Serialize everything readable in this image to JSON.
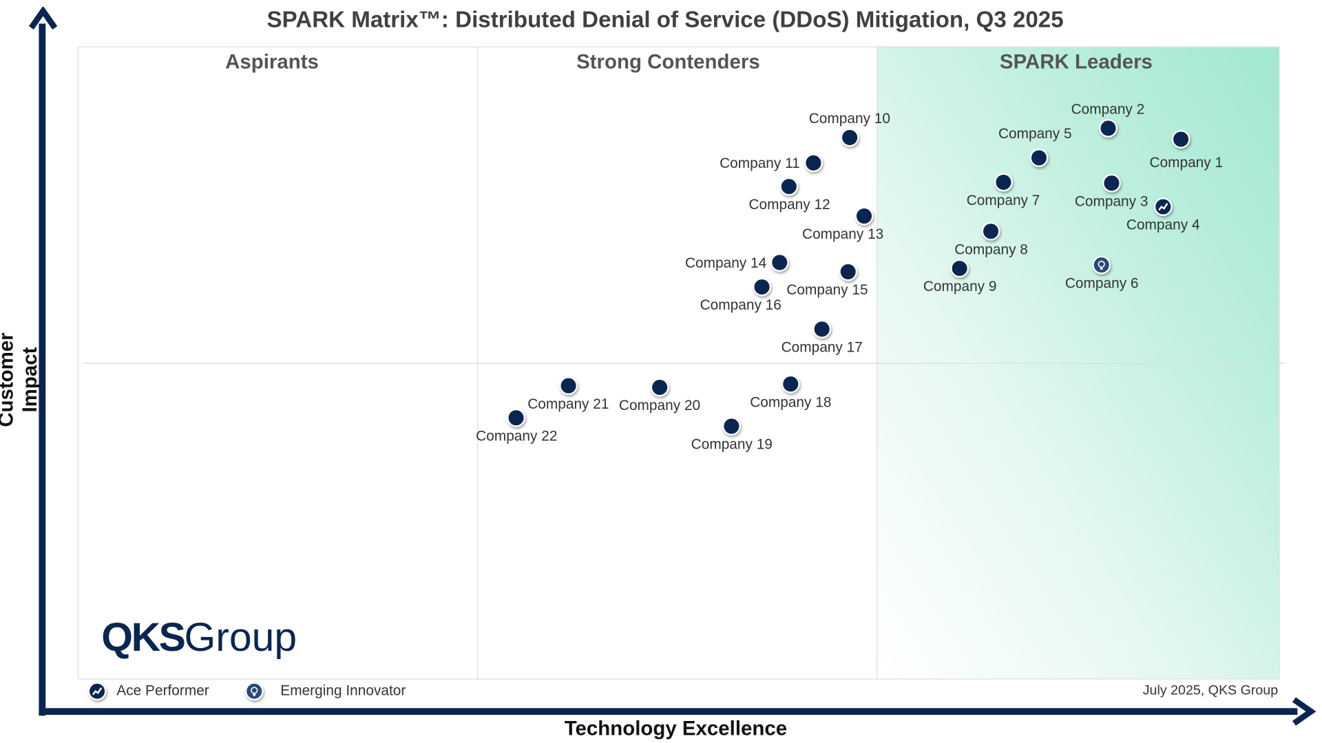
{
  "chart_data": {
    "type": "scatter",
    "title": "SPARK Matrix™: Distributed Denial of Service (DDoS) Mitigation, Q3 2025",
    "xlabel": "Technology Excellence",
    "ylabel": "Customer Impact",
    "xlim": [
      0,
      100
    ],
    "ylim": [
      0,
      100
    ],
    "grid": false,
    "quadrants": [
      "Aspirants",
      "Strong Contenders",
      "SPARK Leaders"
    ],
    "legend": {
      "placement": "bottom-left",
      "items": [
        {
          "label": "Ace Performer",
          "icon": "trend-up-icon"
        },
        {
          "label": "Emerging Innovator",
          "icon": "lightbulb-icon"
        }
      ]
    },
    "points": [
      {
        "name": "Company 1",
        "x": 91.8,
        "y": 85.3,
        "label": "below",
        "badge": ""
      },
      {
        "name": "Company 2",
        "x": 85.7,
        "y": 87.1,
        "label": "above",
        "badge": ""
      },
      {
        "name": "Company 3",
        "x": 86.0,
        "y": 78.4,
        "label": "below",
        "badge": ""
      },
      {
        "name": "Company 4",
        "x": 90.3,
        "y": 74.7,
        "label": "below",
        "badge": "Ace Performer"
      },
      {
        "name": "Company 5",
        "x": 80.0,
        "y": 82.4,
        "label": "above-left",
        "badge": ""
      },
      {
        "name": "Company 6",
        "x": 85.2,
        "y": 65.5,
        "label": "below",
        "badge": "Emerging Innovator"
      },
      {
        "name": "Company 7",
        "x": 77.0,
        "y": 78.5,
        "label": "below",
        "badge": ""
      },
      {
        "name": "Company 8",
        "x": 76.0,
        "y": 70.8,
        "label": "below",
        "badge": ""
      },
      {
        "name": "Company 9",
        "x": 73.4,
        "y": 64.9,
        "label": "below",
        "badge": ""
      },
      {
        "name": "Company 10",
        "x": 64.2,
        "y": 85.6,
        "label": "above",
        "badge": ""
      },
      {
        "name": "Company 11",
        "x": 61.2,
        "y": 81.6,
        "label": "left",
        "badge": ""
      },
      {
        "name": "Company 12",
        "x": 59.2,
        "y": 77.9,
        "label": "below",
        "badge": ""
      },
      {
        "name": "Company 13",
        "x": 65.4,
        "y": 73.2,
        "label": "below-left",
        "badge": ""
      },
      {
        "name": "Company 14",
        "x": 58.4,
        "y": 65.9,
        "label": "left",
        "badge": ""
      },
      {
        "name": "Company 15",
        "x": 64.1,
        "y": 64.4,
        "label": "below-left",
        "badge": ""
      },
      {
        "name": "Company 16",
        "x": 56.9,
        "y": 62.0,
        "label": "below-left",
        "badge": ""
      },
      {
        "name": "Company 17",
        "x": 61.9,
        "y": 55.3,
        "label": "below",
        "badge": ""
      },
      {
        "name": "Company 18",
        "x": 59.3,
        "y": 46.7,
        "label": "below",
        "badge": ""
      },
      {
        "name": "Company 19",
        "x": 54.4,
        "y": 40.0,
        "label": "below",
        "badge": ""
      },
      {
        "name": "Company 20",
        "x": 48.4,
        "y": 46.1,
        "label": "below",
        "badge": ""
      },
      {
        "name": "Company 21",
        "x": 40.8,
        "y": 46.4,
        "label": "below",
        "badge": ""
      },
      {
        "name": "Company 22",
        "x": 36.5,
        "y": 41.3,
        "label": "below",
        "badge": ""
      }
    ],
    "footer": "July 2025, QKS Group",
    "colors": {
      "dot": "#0a2550",
      "axis": "#0a2550",
      "leaders_gradient": "#a2e7d2"
    }
  },
  "logo": {
    "bold": "QKS",
    "light": "Group"
  }
}
